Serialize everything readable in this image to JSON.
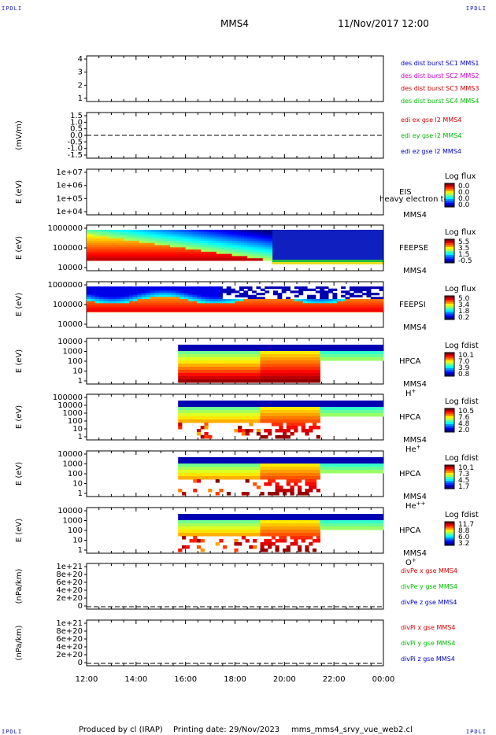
{
  "header": {
    "spacecraft": "MMS4",
    "datetime": "11/Nov/2017 12:00",
    "corner_label": "IPDLI"
  },
  "footer": {
    "produced_by": "Produced by cl (IRAP)",
    "printing_date": "Printing date: 29/Nov/2023",
    "file_name": "mms_mms4_srvy_vue_web2.cl"
  },
  "chart_data": {
    "type": "heatmap",
    "x_ticks": [
      "12:00",
      "14:00",
      "16:00",
      "18:00",
      "20:00",
      "22:00",
      "00:00"
    ],
    "panels": [
      {
        "id": "burst",
        "ylabel": "",
        "y_ticks": [
          "4",
          "3",
          "2",
          "1"
        ],
        "legend": [
          {
            "text": "des dist burst SC1 MMS1",
            "color": "#0000cc"
          },
          {
            "text": "des dist burst SC2 MMS2",
            "color": "#cc00cc"
          },
          {
            "text": "des dist burst SC3 MMS3",
            "color": "#cc0000"
          },
          {
            "text": "des dist burst SC4 MMS4",
            "color": "#00bb00"
          }
        ]
      },
      {
        "id": "edi",
        "ylabel": "(mV/m)",
        "y_ticks": [
          "1.5",
          "1.0",
          "0.5",
          "0.0",
          "-0.5",
          "-1.0",
          "-1.5"
        ],
        "legend": [
          {
            "text": "edi ex gse l2 MMS4",
            "color": "#dd0000"
          },
          {
            "text": "edi ey gse l2 MMS4",
            "color": "#00bb00"
          },
          {
            "text": "edi ez gse l2 MMS4",
            "color": "#0000cc"
          }
        ]
      },
      {
        "id": "eis",
        "ylabel": "E (eV)",
        "y_ticks": [
          "1e+07",
          "1e+06",
          "1e+05",
          "1e+04"
        ],
        "instrument": "EIS",
        "overlay_text": "heavy electron to",
        "spacecraft": "MMS4",
        "cbar_title": "Log flux",
        "cbar_ticks": [
          "0.0",
          "0.0",
          "0.0",
          "0.0"
        ]
      },
      {
        "id": "feepse",
        "ylabel": "E (eV)",
        "y_ticks": [
          "1000000",
          "100000",
          "10000"
        ],
        "instrument": "FEEPSE",
        "spacecraft": "MMS4",
        "cbar_title": "Log flux",
        "cbar_ticks": [
          "5.5",
          "3.5",
          "1.5",
          "-0.5"
        ]
      },
      {
        "id": "feepsi",
        "ylabel": "E (eV)",
        "y_ticks": [
          "1000000",
          "100000",
          "10000"
        ],
        "instrument": "FEEPSI",
        "spacecraft": "MMS4",
        "cbar_title": "Log flux",
        "cbar_ticks": [
          "5.0",
          "3.4",
          "1.8",
          "0.2"
        ]
      },
      {
        "id": "hpca-h",
        "ylabel": "E (eV)",
        "y_ticks": [
          "10000",
          "1000",
          "100",
          "10",
          "1"
        ],
        "instrument": "HPCA",
        "spacecraft": "MMS4",
        "species": "H",
        "species_charge": "+",
        "cbar_title": "Log fdist",
        "cbar_ticks": [
          "10.1",
          "7.0",
          "3.9",
          "0.8"
        ]
      },
      {
        "id": "hpca-he",
        "ylabel": "E (eV)",
        "y_ticks": [
          "100000",
          "10000",
          "1000",
          "100",
          "10",
          "1"
        ],
        "instrument": "HPCA",
        "spacecraft": "MMS4",
        "species": "He",
        "species_charge": "+",
        "cbar_title": "Log fdist",
        "cbar_ticks": [
          "10.5",
          "7.6",
          "4.8",
          "2.0"
        ]
      },
      {
        "id": "hpca-he2",
        "ylabel": "E (eV)",
        "y_ticks": [
          "10000",
          "1000",
          "100",
          "10",
          "1"
        ],
        "instrument": "HPCA",
        "spacecraft": "MMS4",
        "species": "He",
        "species_charge": "++",
        "cbar_title": "Log fdist",
        "cbar_ticks": [
          "10.1",
          "7.3",
          "4.5",
          "1.7"
        ]
      },
      {
        "id": "hpca-o",
        "ylabel": "E (eV)",
        "y_ticks": [
          "10000",
          "1000",
          "100",
          "10",
          "1"
        ],
        "instrument": "HPCA",
        "spacecraft": "MMS4",
        "species": "O",
        "species_charge": "+",
        "cbar_title": "Log fdist",
        "cbar_ticks": [
          "11.7",
          "8.8",
          "6.0",
          "3.2"
        ]
      },
      {
        "id": "divpe",
        "ylabel": "(nPa/km)",
        "y_ticks": [
          "1e+21",
          "8e+20",
          "6e+20",
          "4e+20",
          "2e+20",
          "0"
        ],
        "legend": [
          {
            "text": "divPe x gse MMS4",
            "color": "#dd0000"
          },
          {
            "text": "divPe y gse MMS4",
            "color": "#00bb00"
          },
          {
            "text": "divPe z gse MMS4",
            "color": "#0000cc"
          }
        ]
      },
      {
        "id": "divpi",
        "ylabel": "(nPa/km)",
        "y_ticks": [
          "1e+21",
          "8e+20",
          "6e+20",
          "4e+20",
          "2e+20",
          "0"
        ],
        "legend": [
          {
            "text": "divPi x gse MMS4",
            "color": "#dd0000"
          },
          {
            "text": "divPi y gse MMS4",
            "color": "#00bb00"
          },
          {
            "text": "divPi z gse MMS4",
            "color": "#0000cc"
          }
        ]
      }
    ]
  }
}
